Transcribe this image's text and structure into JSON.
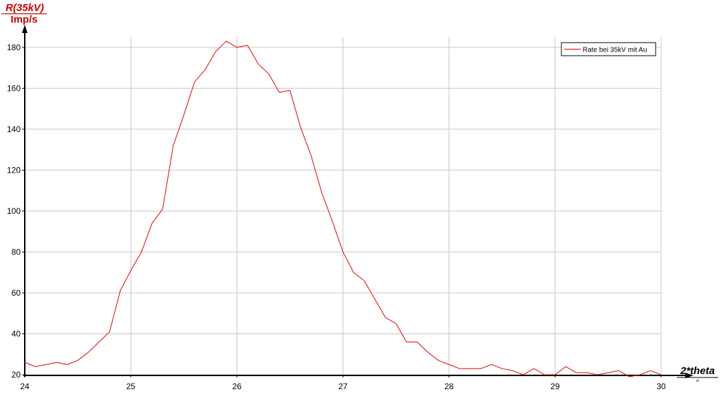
{
  "chart_data": {
    "type": "line",
    "y_axis": {
      "label": "R(35kV)",
      "unit": "Imp/s",
      "ylim": [
        20,
        185
      ],
      "ticks": [
        20,
        40,
        60,
        80,
        100,
        120,
        140,
        160,
        180
      ]
    },
    "x_axis": {
      "label": "2*theta",
      "unit": "°",
      "xlim": [
        24,
        30
      ],
      "ticks": [
        24,
        25,
        26,
        27,
        28,
        29,
        30
      ]
    },
    "grid": true,
    "legend": {
      "position": "top-right",
      "entries": [
        "Rate bei 35kV mit Au"
      ]
    },
    "colors": {
      "series": "#e00000",
      "axis_title_y": "#cc0000",
      "grid": "#c8c8c8",
      "axis": "#000000"
    },
    "series": [
      {
        "name": "Rate bei 35kV mit Au",
        "x": [
          24.0,
          24.1,
          24.2,
          24.3,
          24.4,
          24.5,
          24.6,
          24.7,
          24.8,
          24.9,
          25.0,
          25.1,
          25.2,
          25.3,
          25.4,
          25.5,
          25.6,
          25.7,
          25.8,
          25.9,
          26.0,
          26.1,
          26.2,
          26.3,
          26.4,
          26.5,
          26.6,
          26.7,
          26.8,
          26.9,
          27.0,
          27.1,
          27.2,
          27.3,
          27.4,
          27.5,
          27.6,
          27.7,
          27.8,
          27.9,
          28.0,
          28.1,
          28.2,
          28.3,
          28.4,
          28.5,
          28.6,
          28.7,
          28.8,
          28.9,
          29.0,
          29.1,
          29.2,
          29.3,
          29.4,
          29.5,
          29.6,
          29.7,
          29.8,
          29.9,
          30.0
        ],
        "y": [
          26,
          24,
          25,
          26,
          25,
          27,
          31,
          36,
          41,
          61,
          71,
          80,
          94,
          101,
          132,
          147,
          163,
          169,
          178,
          183,
          180,
          181,
          172,
          167,
          158,
          159,
          141,
          127,
          109,
          95,
          80,
          70,
          66,
          57,
          48,
          45,
          36,
          36,
          31,
          27,
          25,
          23,
          23,
          23,
          25,
          23,
          22,
          20,
          23,
          20,
          20,
          24,
          21,
          21,
          20,
          21,
          22,
          19,
          20,
          22,
          20
        ]
      }
    ]
  }
}
